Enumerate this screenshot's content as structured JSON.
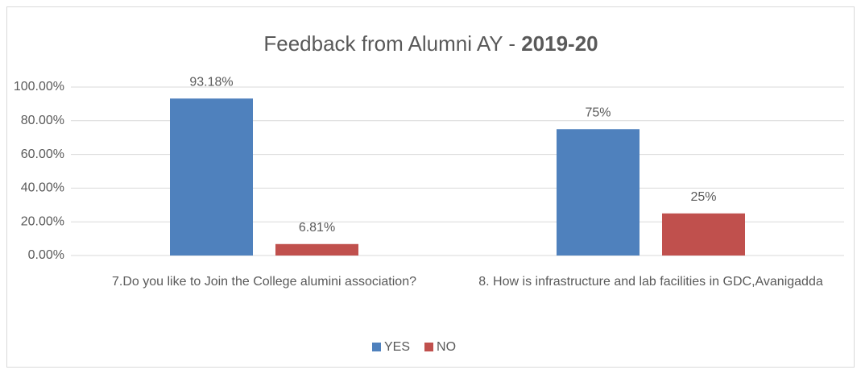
{
  "chart_data": {
    "type": "bar",
    "title": {
      "text": "Feedback from Alumni AY - ",
      "emphasis": "2019-20"
    },
    "categories": [
      "7.Do you like to Join the College alumini association?",
      "8. How is infrastructure and lab facilities in GDC,Avanigadda"
    ],
    "series": [
      {
        "name": "YES",
        "color": "#4f81bd",
        "values": [
          93.18,
          75
        ],
        "value_labels": [
          "93.18%",
          "75%"
        ]
      },
      {
        "name": "NO",
        "color": "#c0504d",
        "values": [
          6.81,
          25
        ],
        "value_labels": [
          "6.81%",
          "25%"
        ]
      }
    ],
    "ylim": [
      0,
      100
    ],
    "yticks": [
      {
        "value": 0,
        "label": "0.00%"
      },
      {
        "value": 20,
        "label": "20.00%"
      },
      {
        "value": 40,
        "label": "40.00%"
      },
      {
        "value": 60,
        "label": "60.00%"
      },
      {
        "value": 80,
        "label": "80.00%"
      },
      {
        "value": 100,
        "label": "100.00%"
      }
    ],
    "grid": true,
    "legend": "bottom"
  }
}
